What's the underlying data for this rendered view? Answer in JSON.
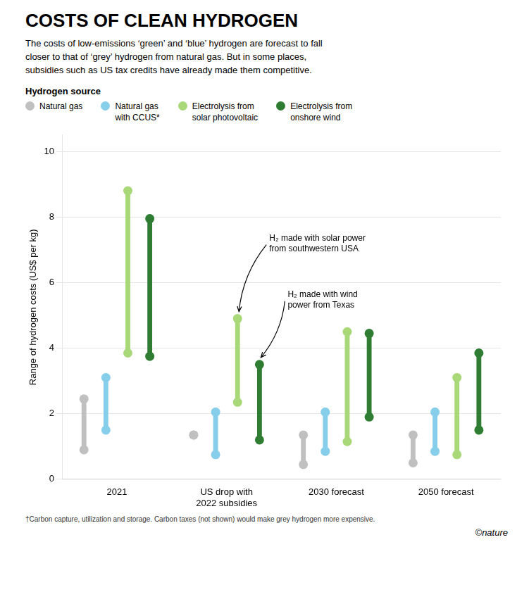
{
  "chart_data": {
    "type": "range_bar",
    "title": "COSTS OF CLEAN HYDROGEN",
    "subtitle": "The costs of low-emissions ‘green’ and ‘blue’ hydrogen are forecast to fall\ncloser to that of ‘grey’ hydrogen from natural gas. But in some places,\nsubsidies such as US tax credits have already made them competitive.",
    "legend_title": "Hydrogen source",
    "legend": "top",
    "y_label": "Range of hydrogen costs (US$ per kg)",
    "categories": [
      "2021",
      "US drop with\n2022 subsidies",
      "2030 forecast",
      "2050 forecast"
    ],
    "series": [
      {
        "name": "Natural gas",
        "color": "#c0c0c0",
        "values": [
          [
            0.9,
            2.45
          ],
          [
            1.35,
            1.35
          ],
          [
            0.45,
            1.35
          ],
          [
            0.5,
            1.35
          ]
        ]
      },
      {
        "name": "Natural gas\nwith CCUS*",
        "color": "#87ceeb",
        "values": [
          [
            1.5,
            3.1
          ],
          [
            0.75,
            2.05
          ],
          [
            0.85,
            2.05
          ],
          [
            0.85,
            2.05
          ]
        ]
      },
      {
        "name": "Electrolysis from\nsolar photovoltaic",
        "color": "#a8d878",
        "values": [
          [
            3.85,
            8.8
          ],
          [
            2.35,
            4.9
          ],
          [
            1.15,
            4.5
          ],
          [
            0.75,
            3.1
          ]
        ]
      },
      {
        "name": "Electrolysis from\nonshore wind",
        "color": "#2e7d32",
        "values": [
          [
            3.75,
            7.95
          ],
          [
            1.2,
            3.5
          ],
          [
            1.9,
            4.45
          ],
          [
            1.5,
            3.85
          ]
        ]
      }
    ],
    "ylim": [
      0,
      10.5
    ],
    "yticks": [
      0,
      2,
      4,
      6,
      8,
      10
    ],
    "grid": true,
    "annotations": [
      {
        "text": "H₂ made with solar power\nfrom southwestern USA",
        "category": "US drop with\n2022 subsidies",
        "series": "Electrolysis from\nsolar photovoltaic"
      },
      {
        "text": "H₂ made with wind\npower from Texas",
        "category": "US drop with\n2022 subsidies",
        "series": "Electrolysis from\nonshore wind"
      }
    ],
    "footnote": "†Carbon capture, utilization and storage. Carbon taxes (not shown) would make grey hydrogen more expensive.",
    "credit": "©nature"
  }
}
